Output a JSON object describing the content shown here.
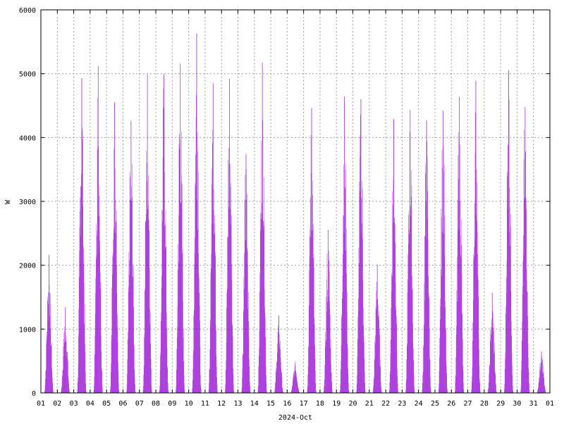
{
  "chart_data": {
    "type": "bar",
    "title": "",
    "xlabel": "2024-Oct",
    "ylabel": "W",
    "ylim": [
      0,
      6000
    ],
    "yticks": [
      0,
      1000,
      2000,
      3000,
      4000,
      5000,
      6000
    ],
    "xticks": [
      "01",
      "02",
      "03",
      "04",
      "05",
      "06",
      "07",
      "08",
      "09",
      "10",
      "11",
      "12",
      "13",
      "14",
      "15",
      "16",
      "17",
      "18",
      "19",
      "20",
      "21",
      "22",
      "23",
      "24",
      "25",
      "26",
      "27",
      "28",
      "29",
      "30",
      "31",
      "01"
    ],
    "grid": true,
    "bar_color": "#9400d3",
    "grid_color": "#a0a0a0",
    "daily_peaks_W": [
      {
        "date": "2024-10-01",
        "peak": 2160
      },
      {
        "date": "2024-10-02",
        "peak": 1340
      },
      {
        "date": "2024-10-03",
        "peak": 4930
      },
      {
        "date": "2024-10-04",
        "peak": 5120
      },
      {
        "date": "2024-10-05",
        "peak": 4550
      },
      {
        "date": "2024-10-06",
        "peak": 4260
      },
      {
        "date": "2024-10-07",
        "peak": 4990
      },
      {
        "date": "2024-10-08",
        "peak": 4990
      },
      {
        "date": "2024-10-09",
        "peak": 5160
      },
      {
        "date": "2024-10-10",
        "peak": 5630
      },
      {
        "date": "2024-10-11",
        "peak": 4850
      },
      {
        "date": "2024-10-12",
        "peak": 4920
      },
      {
        "date": "2024-10-13",
        "peak": 3740
      },
      {
        "date": "2024-10-14",
        "peak": 5170
      },
      {
        "date": "2024-10-15",
        "peak": 1210
      },
      {
        "date": "2024-10-16",
        "peak": 480
      },
      {
        "date": "2024-10-17",
        "peak": 4460
      },
      {
        "date": "2024-10-18",
        "peak": 2550
      },
      {
        "date": "2024-10-19",
        "peak": 4640
      },
      {
        "date": "2024-10-20",
        "peak": 4600
      },
      {
        "date": "2024-10-21",
        "peak": 2010
      },
      {
        "date": "2024-10-22",
        "peak": 4290
      },
      {
        "date": "2024-10-23",
        "peak": 4430
      },
      {
        "date": "2024-10-24",
        "peak": 4270
      },
      {
        "date": "2024-10-25",
        "peak": 4420
      },
      {
        "date": "2024-10-26",
        "peak": 4640
      },
      {
        "date": "2024-10-27",
        "peak": 4890
      },
      {
        "date": "2024-10-28",
        "peak": 1570
      },
      {
        "date": "2024-10-29",
        "peak": 5050
      },
      {
        "date": "2024-10-30",
        "peak": 4480
      },
      {
        "date": "2024-10-31",
        "peak": 650
      }
    ]
  }
}
